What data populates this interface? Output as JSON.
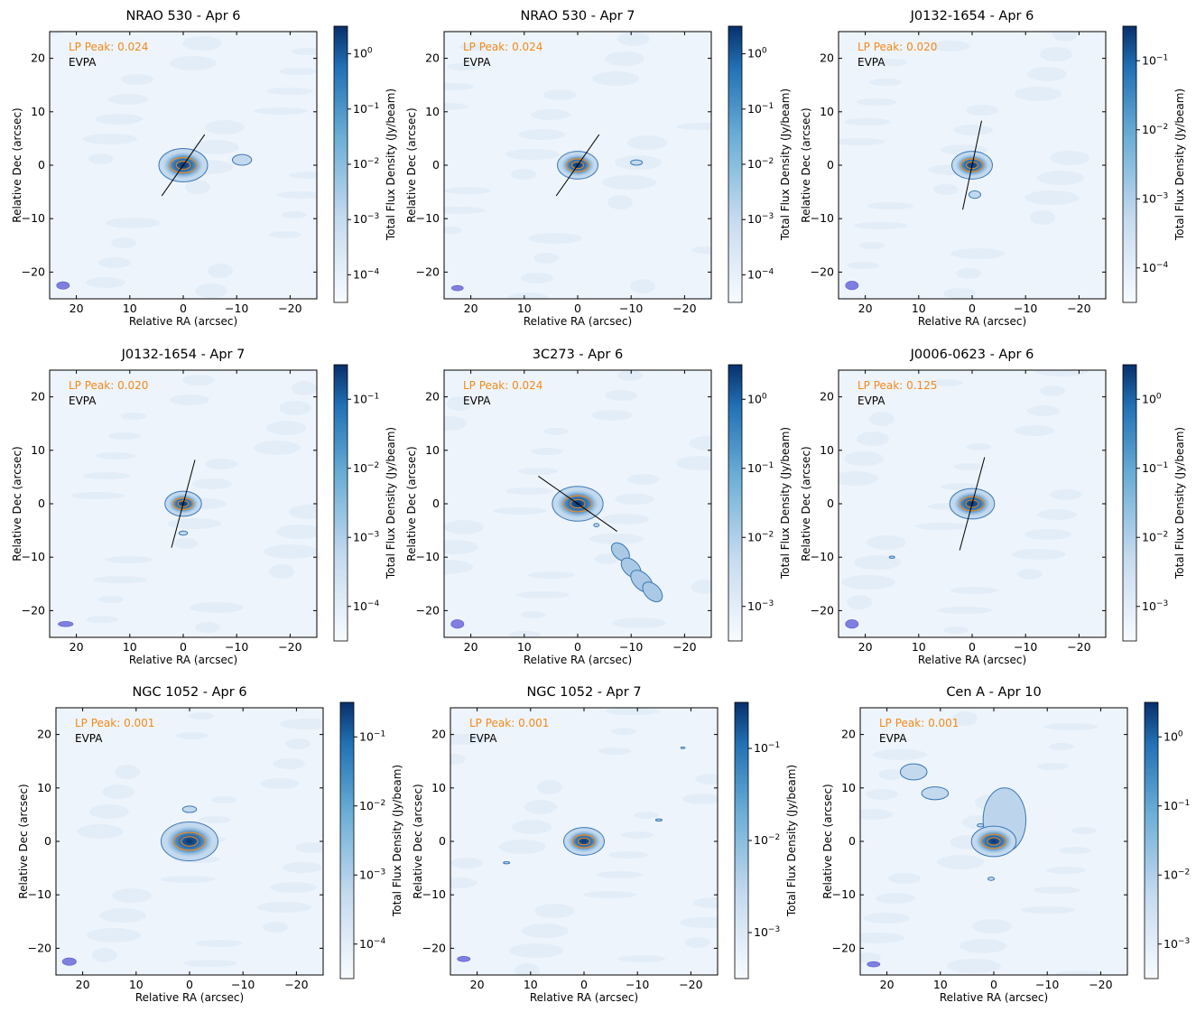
{
  "chart_data": [
    {
      "type": "heatmap",
      "title": "NRAO 530 - Apr 6",
      "xlabel": "Relative RA (arcsec)",
      "ylabel": "Relative Dec (arcsec)",
      "colorbar_label": "Total Flux Density (Jy/beam)",
      "colorbar_scale": "log",
      "colorbar_ticks": [
        "10^-4",
        "10^-3",
        "10^-2",
        "10^-1",
        "10^0"
      ],
      "xlim": [
        25,
        -25
      ],
      "ylim": [
        -25,
        25
      ],
      "x_ticks": [
        20,
        10,
        0,
        -10,
        -20
      ],
      "y_ticks": [
        -20,
        -10,
        0,
        10,
        20
      ],
      "lp_peak_label": "LP Peak: 0.024",
      "evpa_label": "EVPA",
      "evpa_angle_deg": -55,
      "evpa_length": 14,
      "peak_sigma": 2.4,
      "extra_blobs": [
        {
          "x": -11,
          "y": 1,
          "rx": 1.8,
          "ry": 1
        }
      ],
      "beam": {
        "x": 22.5,
        "y": -22.5,
        "rx": 1.2,
        "ry": 0.7
      }
    },
    {
      "type": "heatmap",
      "title": "NRAO 530 - Apr 7",
      "xlabel": "Relative RA (arcsec)",
      "ylabel": "Relative Dec (arcsec)",
      "colorbar_label": "Total Flux Density (Jy/beam)",
      "colorbar_scale": "log",
      "colorbar_ticks": [
        "10^-4",
        "10^-3",
        "10^-2",
        "10^-1",
        "10^0"
      ],
      "xlim": [
        25,
        -25
      ],
      "ylim": [
        -25,
        25
      ],
      "x_ticks": [
        20,
        10,
        0,
        -10,
        -20
      ],
      "y_ticks": [
        -20,
        -10,
        0,
        10,
        20
      ],
      "lp_peak_label": "LP Peak: 0.024",
      "evpa_label": "EVPA",
      "evpa_angle_deg": -55,
      "evpa_length": 14,
      "peak_sigma": 2.0,
      "extra_blobs": [
        {
          "x": -11,
          "y": 0.5,
          "rx": 1.1,
          "ry": 0.5
        }
      ],
      "beam": {
        "x": 22.5,
        "y": -23,
        "rx": 1.1,
        "ry": 0.5
      }
    },
    {
      "type": "heatmap",
      "title": "J0132-1654 - Apr 6",
      "xlabel": "Relative RA (arcsec)",
      "ylabel": "Relative Dec (arcsec)",
      "colorbar_label": "Total Flux Density (Jy/beam)",
      "colorbar_scale": "log",
      "colorbar_ticks": [
        "10^-4",
        "10^-3",
        "10^-2",
        "10^-1"
      ],
      "xlim": [
        25,
        -25
      ],
      "ylim": [
        -25,
        25
      ],
      "x_ticks": [
        20,
        10,
        0,
        -10,
        -20
      ],
      "y_ticks": [
        -20,
        -10,
        0,
        10,
        20
      ],
      "lp_peak_label": "LP Peak: 0.020",
      "evpa_label": "EVPA",
      "evpa_angle_deg": -78,
      "evpa_length": 17,
      "peak_sigma": 2.0,
      "extra_blobs": [
        {
          "x": -0.5,
          "y": -5.5,
          "rx": 1.1,
          "ry": 0.7
        }
      ],
      "beam": {
        "x": 22.5,
        "y": -22.5,
        "rx": 1.2,
        "ry": 0.8
      }
    },
    {
      "type": "heatmap",
      "title": "J0132-1654 - Apr 7",
      "xlabel": "Relative RA (arcsec)",
      "ylabel": "Relative Dec (arcsec)",
      "colorbar_label": "Total Flux Density (Jy/beam)",
      "colorbar_scale": "log",
      "colorbar_ticks": [
        "10^-4",
        "10^-3",
        "10^-2",
        "10^-1"
      ],
      "xlim": [
        25,
        -25
      ],
      "ylim": [
        -25,
        25
      ],
      "x_ticks": [
        20,
        10,
        0,
        -10,
        -20
      ],
      "y_ticks": [
        -20,
        -10,
        0,
        10,
        20
      ],
      "lp_peak_label": "LP Peak: 0.020",
      "evpa_label": "EVPA",
      "evpa_angle_deg": -75,
      "evpa_length": 17,
      "peak_sigma": 1.8,
      "extra_blobs": [
        {
          "x": 0,
          "y": -5.5,
          "rx": 0.8,
          "ry": 0.4
        }
      ],
      "beam": {
        "x": 22,
        "y": -22.5,
        "rx": 1.4,
        "ry": 0.5
      }
    },
    {
      "type": "heatmap",
      "title": "3C273 - Apr 6",
      "xlabel": "Relative RA (arcsec)",
      "ylabel": "Relative Dec (arcsec)",
      "colorbar_label": "Total Flux Density (Jy/beam)",
      "colorbar_scale": "log",
      "colorbar_ticks": [
        "10^-3",
        "10^-2",
        "10^-1",
        "10^0"
      ],
      "xlim": [
        25,
        -25
      ],
      "ylim": [
        -25,
        25
      ],
      "x_ticks": [
        20,
        10,
        0,
        -10,
        -20
      ],
      "y_ticks": [
        -20,
        -10,
        0,
        10,
        20
      ],
      "lp_peak_label": "LP Peak: 0.024",
      "evpa_label": "EVPA",
      "evpa_angle_deg": 35,
      "evpa_length": 18,
      "peak_sigma": 2.5,
      "extra_blobs": [
        {
          "x": -3.5,
          "y": -4,
          "rx": 0.5,
          "ry": 0.3
        }
      ],
      "jet": [
        {
          "x": -8,
          "y": -9,
          "rx": 2,
          "ry": 1.3
        },
        {
          "x": -10,
          "y": -12,
          "rx": 2.2,
          "ry": 1.4
        },
        {
          "x": -12,
          "y": -14.5,
          "rx": 2.5,
          "ry": 1.5
        },
        {
          "x": -14,
          "y": -16.5,
          "rx": 2.2,
          "ry": 1.4
        }
      ],
      "beam": {
        "x": 22.5,
        "y": -22.5,
        "rx": 1.2,
        "ry": 0.8
      }
    },
    {
      "type": "heatmap",
      "title": "J0006-0623 - Apr 6",
      "xlabel": "Relative RA (arcsec)",
      "ylabel": "Relative Dec (arcsec)",
      "colorbar_label": "Total Flux Density (Jy/beam)",
      "colorbar_scale": "log",
      "colorbar_ticks": [
        "10^-3",
        "10^-2",
        "10^-1",
        "10^0"
      ],
      "xlim": [
        25,
        -25
      ],
      "ylim": [
        -25,
        25
      ],
      "x_ticks": [
        20,
        10,
        0,
        -10,
        -20
      ],
      "y_ticks": [
        -20,
        -10,
        0,
        10,
        20
      ],
      "lp_peak_label": "LP Peak: 0.125",
      "evpa_label": "EVPA",
      "evpa_angle_deg": -75,
      "evpa_length": 18,
      "peak_sigma": 2.2,
      "extra_blobs": [
        {
          "x": 15,
          "y": -10,
          "rx": 0.5,
          "ry": 0.2
        }
      ],
      "beam": {
        "x": 22.5,
        "y": -22.5,
        "rx": 1.2,
        "ry": 0.8
      }
    },
    {
      "type": "heatmap",
      "title": "NGC 1052 - Apr 6",
      "xlabel": "Relative RA (arcsec)",
      "ylabel": "Relative Dec (arcsec)",
      "colorbar_label": "Total Flux Density (Jy/beam)",
      "colorbar_scale": "log",
      "colorbar_ticks": [
        "10^-4",
        "10^-3",
        "10^-2",
        "10^-1"
      ],
      "xlim": [
        25,
        -25
      ],
      "ylim": [
        -25,
        25
      ],
      "x_ticks": [
        20,
        10,
        0,
        -10,
        -20
      ],
      "y_ticks": [
        -20,
        -10,
        0,
        10,
        20
      ],
      "lp_peak_label": "LP Peak: 0.001",
      "evpa_label": "EVPA",
      "evpa_angle_deg": null,
      "evpa_length": 0,
      "peak_sigma": 2.8,
      "extra_blobs": [
        {
          "x": 0,
          "y": 6,
          "rx": 1.3,
          "ry": 0.6
        }
      ],
      "beam": {
        "x": 22.5,
        "y": -22.5,
        "rx": 1.3,
        "ry": 0.7
      }
    },
    {
      "type": "heatmap",
      "title": "NGC 1052 - Apr 7",
      "xlabel": "Relative RA (arcsec)",
      "ylabel": "Relative Dec (arcsec)",
      "colorbar_label": "Total Flux Density (Jy/beam)",
      "colorbar_scale": "log",
      "colorbar_ticks": [
        "10^-3",
        "10^-2",
        "10^-1"
      ],
      "xlim": [
        25,
        -25
      ],
      "ylim": [
        -25,
        25
      ],
      "x_ticks": [
        20,
        10,
        0,
        -10,
        -20
      ],
      "y_ticks": [
        -20,
        -10,
        0,
        10,
        20
      ],
      "lp_peak_label": "LP Peak: 0.001",
      "evpa_label": "EVPA",
      "evpa_angle_deg": null,
      "evpa_length": 0,
      "peak_sigma": 2.0,
      "extra_blobs": [
        {
          "x": -14,
          "y": 4,
          "rx": 0.6,
          "ry": 0.2
        },
        {
          "x": 14.5,
          "y": -4,
          "rx": 0.6,
          "ry": 0.2
        },
        {
          "x": -18.5,
          "y": 17.5,
          "rx": 0.4,
          "ry": 0.15
        }
      ],
      "beam": {
        "x": 22.5,
        "y": -22,
        "rx": 1.2,
        "ry": 0.5
      }
    },
    {
      "type": "heatmap",
      "title": "Cen A - Apr 10",
      "xlabel": "Relative RA (arcsec)",
      "ylabel": "Relative Dec (arcsec)",
      "colorbar_label": "Total Flux Density (Jy/beam)",
      "colorbar_scale": "log",
      "colorbar_ticks": [
        "10^-3",
        "10^-2",
        "10^-1",
        "10^0"
      ],
      "xlim": [
        25,
        -25
      ],
      "ylim": [
        -25,
        25
      ],
      "x_ticks": [
        20,
        10,
        0,
        -10,
        -20
      ],
      "y_ticks": [
        -20,
        -10,
        0,
        10,
        20
      ],
      "lp_peak_label": "LP Peak: 0.001",
      "evpa_label": "EVPA",
      "evpa_angle_deg": null,
      "evpa_length": 0,
      "peak_sigma": 2.2,
      "extra_blobs": [
        {
          "x": 15,
          "y": 13,
          "rx": 2.5,
          "ry": 1.5
        },
        {
          "x": 11,
          "y": 9,
          "rx": 2.5,
          "ry": 1.2
        },
        {
          "x": 2.5,
          "y": 3,
          "rx": 0.6,
          "ry": 0.3
        },
        {
          "x": 0.5,
          "y": -7,
          "rx": 0.6,
          "ry": 0.3
        }
      ],
      "halo": {
        "x": -2,
        "y": 4,
        "rx": 4,
        "ry": 6
      },
      "beam": {
        "x": 22.5,
        "y": -23,
        "rx": 1.2,
        "ry": 0.5
      }
    }
  ],
  "panels": [
    {
      "title": "NRAO 530 - Apr 6",
      "lp": "LP Peak: 0.024",
      "evpa": "EVPA"
    },
    {
      "title": "NRAO 530 - Apr 7",
      "lp": "LP Peak: 0.024",
      "evpa": "EVPA"
    },
    {
      "title": "J0132-1654 - Apr 6",
      "lp": "LP Peak: 0.020",
      "evpa": "EVPA"
    },
    {
      "title": "J0132-1654 - Apr 7",
      "lp": "LP Peak: 0.020",
      "evpa": "EVPA"
    },
    {
      "title": "3C273 - Apr 6",
      "lp": "LP Peak: 0.024",
      "evpa": "EVPA"
    },
    {
      "title": "J0006-0623 - Apr 6",
      "lp": "LP Peak: 0.125",
      "evpa": "EVPA"
    },
    {
      "title": "NGC 1052 - Apr 6",
      "lp": "LP Peak: 0.001",
      "evpa": "EVPA"
    },
    {
      "title": "NGC 1052 - Apr 7",
      "lp": "LP Peak: 0.001",
      "evpa": "EVPA"
    },
    {
      "title": "Cen A - Apr 10",
      "lp": "LP Peak: 0.001",
      "evpa": "EVPA"
    }
  ],
  "axis_labels": {
    "x": "Relative RA (arcsec)",
    "y": "Relative Dec (arcsec)",
    "cbar": "Total Flux Density (Jy/beam)"
  },
  "colors": {
    "contour_outer": "#3a78b5",
    "contour_inner": "#f28a1a",
    "core": "#08306b",
    "mid": "#2f7ab8",
    "background": "#eef4fb",
    "beam": "#7f7fe0",
    "evpa_line": "#000000"
  }
}
